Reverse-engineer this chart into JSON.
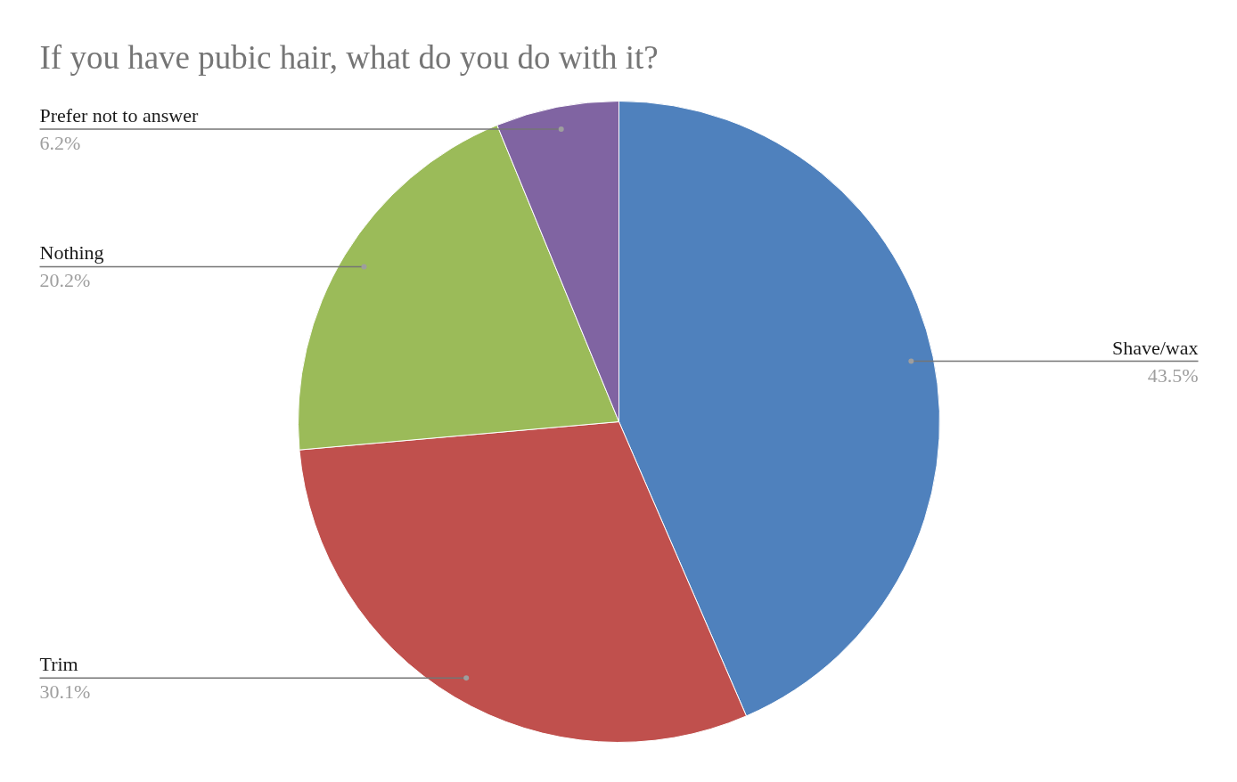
{
  "chart_data": {
    "type": "pie",
    "title": "If you have pubic hair, what do you do with it?",
    "categories": [
      "Shave/wax",
      "Trim",
      "Nothing",
      "Prefer not to answer"
    ],
    "values": [
      43.5,
      30.1,
      20.2,
      6.2
    ],
    "colors": [
      "#4f81bd",
      "#c0504d",
      "#9bbb59",
      "#8064a2"
    ],
    "value_labels": [
      "43.5%",
      "30.1%",
      "20.2%",
      "6.2%"
    ]
  }
}
